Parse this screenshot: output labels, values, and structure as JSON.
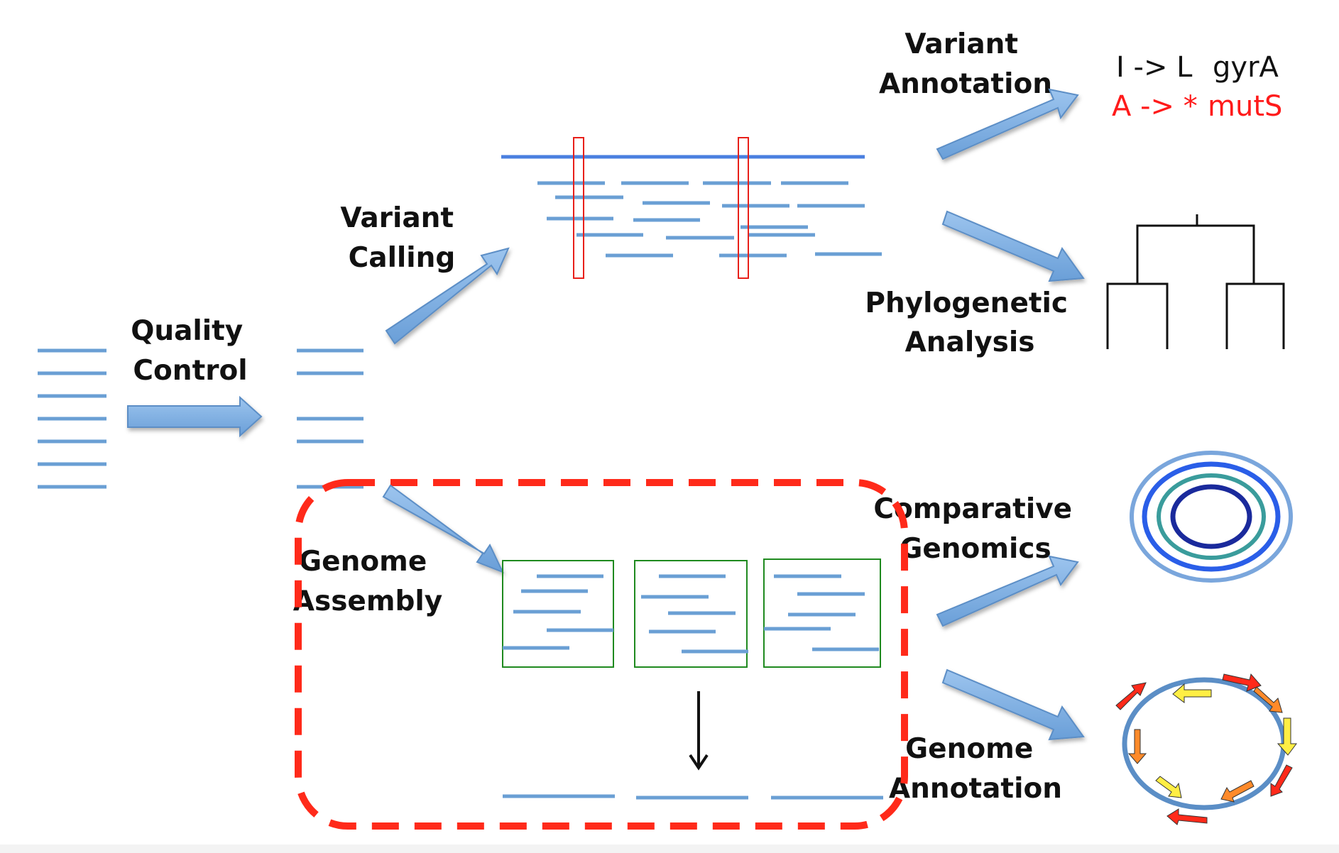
{
  "labels": {
    "quality_control": [
      "Quality",
      "Control"
    ],
    "variant_calling": [
      "Variant",
      "Calling"
    ],
    "variant_annotation": [
      "Variant",
      "Annotation"
    ],
    "phylogenetic_analysis": [
      "Phylogenetic",
      "Analysis"
    ],
    "genome_assembly": [
      "Genome",
      "Assembly"
    ],
    "comparative_genomics": [
      "Comparative",
      "Genomics"
    ],
    "genome_annotation": [
      "Genome",
      "Annotation"
    ]
  },
  "variants": [
    {
      "change": "I -> L",
      "gene": "gyrA",
      "color": "#111111"
    },
    {
      "change": "A -> *",
      "gene": "mutS",
      "color": "#ff1a1a"
    }
  ],
  "colors": {
    "read": "#6a9fd4",
    "arrow_fill": "#7eb0e6",
    "arrow_stroke": "#5b8ec6",
    "highlight_box": "#e8201a",
    "contig_box": "#1f8a1f",
    "dashed_region": "#ff2a1a"
  }
}
